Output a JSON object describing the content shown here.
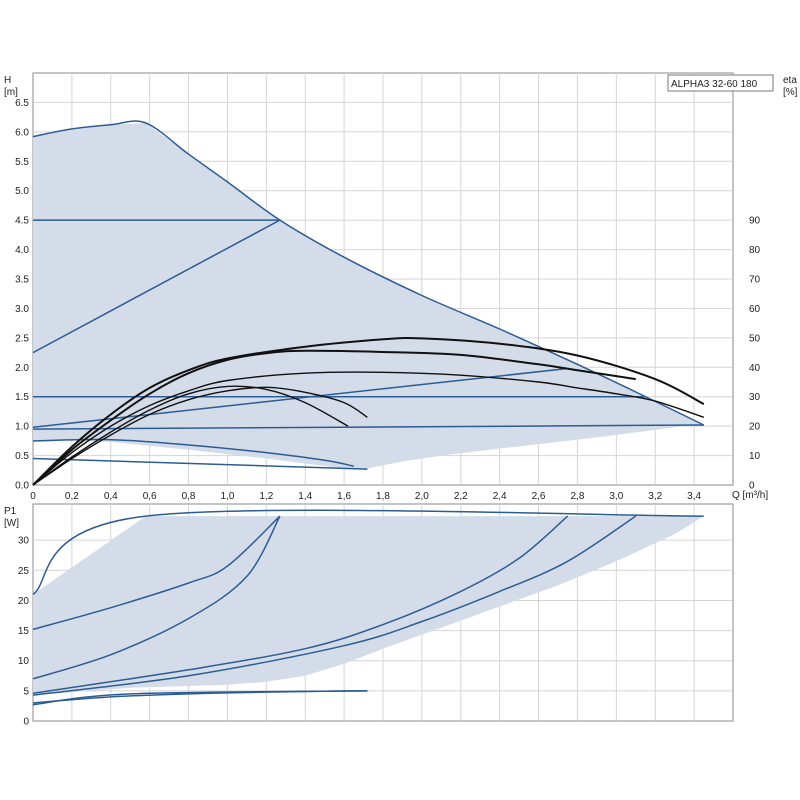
{
  "chart_data": [
    {
      "type": "line",
      "title": "ALPHA3 32-60 180",
      "ylabel_left": [
        "H",
        "[m]"
      ],
      "ylabel_right": [
        "eta",
        "[%]"
      ],
      "xlabel": "Q [m³/h]",
      "xlim": [
        0,
        3.6
      ],
      "ylim": [
        0,
        7.0
      ],
      "ylim_right": [
        0,
        140
      ],
      "grid": true,
      "x_ticks": [
        "0",
        "0,2",
        "0,4",
        "0,6",
        "0,8",
        "1,0",
        "1,2",
        "1,4",
        "1,6",
        "1,8",
        "2,0",
        "2,2",
        "2,4",
        "2,6",
        "2,8",
        "3,0",
        "3,2",
        "3,4"
      ],
      "y_ticks": [
        "0.0",
        "0.5",
        "1.0",
        "1.5",
        "2.0",
        "2.5",
        "3.0",
        "3.5",
        "4.0",
        "4.5",
        "5.0",
        "5.5",
        "6.0",
        "6.5"
      ],
      "y_right_ticks": [
        "0",
        "10",
        "20",
        "30",
        "40",
        "50",
        "60",
        "70",
        "80",
        "90"
      ],
      "operating_area": [
        [
          0,
          5.92
        ],
        [
          0.2,
          6.05
        ],
        [
          0.4,
          6.12
        ],
        [
          0.58,
          6.15
        ],
        [
          0.8,
          5.62
        ],
        [
          1.0,
          5.15
        ],
        [
          1.27,
          4.5
        ],
        [
          1.6,
          3.87
        ],
        [
          2.0,
          3.22
        ],
        [
          2.4,
          2.65
        ],
        [
          2.8,
          2.05
        ],
        [
          3.1,
          1.58
        ],
        [
          3.45,
          1.02
        ],
        [
          3.3,
          0.98
        ],
        [
          3.0,
          0.85
        ],
        [
          2.7,
          0.73
        ],
        [
          2.4,
          0.62
        ],
        [
          2.1,
          0.5
        ],
        [
          1.9,
          0.4
        ],
        [
          1.72,
          0.28
        ],
        [
          1.55,
          0.3
        ],
        [
          1.2,
          0.45
        ],
        [
          0.8,
          0.6
        ],
        [
          0.4,
          0.73
        ],
        [
          0.2,
          0.76
        ],
        [
          0,
          0.73
        ]
      ],
      "head_series": [
        {
          "points": [
            [
              0,
              5.92
            ],
            [
              0.2,
              6.05
            ],
            [
              0.4,
              6.12
            ],
            [
              0.58,
              6.15
            ],
            [
              0.8,
              5.62
            ],
            [
              1.0,
              5.15
            ],
            [
              1.27,
              4.5
            ],
            [
              1.6,
              3.87
            ],
            [
              2.0,
              3.22
            ],
            [
              2.4,
              2.65
            ],
            [
              2.8,
              2.05
            ],
            [
              3.1,
              1.58
            ],
            [
              3.45,
              1.02
            ]
          ]
        },
        {
          "points": [
            [
              0,
              4.5
            ],
            [
              1.27,
              4.5
            ]
          ]
        },
        {
          "points": [
            [
              0,
              2.25
            ],
            [
              1.27,
              4.5
            ]
          ]
        },
        {
          "points": [
            [
              0,
              1.5
            ],
            [
              3.15,
              1.5
            ]
          ]
        },
        {
          "points": [
            [
              0,
              0.98
            ],
            [
              2.75,
              1.98
            ]
          ]
        },
        {
          "points": [
            [
              0,
              0.95
            ],
            [
              3.45,
              1.02
            ]
          ]
        },
        {
          "points": [
            [
              0,
              0.75
            ],
            [
              0.4,
              0.77
            ],
            [
              0.8,
              0.68
            ],
            [
              1.2,
              0.55
            ],
            [
              1.5,
              0.42
            ],
            [
              1.65,
              0.32
            ]
          ]
        },
        {
          "points": [
            [
              0,
              0.45
            ],
            [
              1.72,
              0.27
            ]
          ]
        }
      ],
      "efficiency_series": [
        {
          "points": [
            [
              0,
              0
            ],
            [
              0.2,
              11
            ],
            [
              0.4,
              20
            ],
            [
              0.6,
              27
            ],
            [
              0.8,
              32
            ],
            [
              1.0,
              35.5
            ],
            [
              1.4,
              38
            ],
            [
              1.8,
              38.3
            ],
            [
              2.2,
              37.3
            ],
            [
              2.6,
              35
            ],
            [
              2.8,
              33
            ],
            [
              3.0,
              31
            ],
            [
              3.2,
              28.5
            ],
            [
              3.45,
              23
            ]
          ]
        },
        {
          "points": [
            [
              0,
              0
            ],
            [
              0.2,
              12
            ],
            [
              0.4,
              22
            ],
            [
              0.6,
              31
            ],
            [
              0.8,
              38
            ],
            [
              1.0,
              42.5
            ],
            [
              1.2,
              44.8
            ],
            [
              1.4,
              45.6
            ],
            [
              1.8,
              45.2
            ],
            [
              2.2,
              44.2
            ],
            [
              2.6,
              41
            ],
            [
              2.8,
              39
            ],
            [
              3.1,
              36
            ]
          ]
        },
        {
          "points": [
            [
              0,
              0
            ],
            [
              0.2,
              13
            ],
            [
              0.4,
              24
            ],
            [
              0.6,
              33
            ],
            [
              0.8,
              39
            ],
            [
              1.0,
              43
            ],
            [
              1.4,
              47
            ],
            [
              1.8,
              49.5
            ],
            [
              2.0,
              49.8
            ],
            [
              2.4,
              48
            ],
            [
              2.8,
              44
            ],
            [
              3.2,
              36
            ],
            [
              3.45,
              27.5
            ]
          ]
        },
        {
          "points": [
            [
              0,
              0
            ],
            [
              0.2,
              9
            ],
            [
              0.4,
              17
            ],
            [
              0.6,
              24
            ],
            [
              0.8,
              29
            ],
            [
              1.0,
              32
            ],
            [
              1.2,
              33.2
            ],
            [
              1.4,
              31.5
            ],
            [
              1.6,
              28
            ],
            [
              1.72,
              23
            ]
          ]
        },
        {
          "points": [
            [
              0,
              0
            ],
            [
              0.2,
              9.5
            ],
            [
              0.4,
              18
            ],
            [
              0.6,
              25.5
            ],
            [
              0.8,
              31
            ],
            [
              1.0,
              33.5
            ],
            [
              1.2,
              32.5
            ],
            [
              1.4,
              28
            ],
            [
              1.62,
              20
            ]
          ]
        }
      ]
    },
    {
      "type": "line",
      "ylabel": [
        "P1",
        "[W]"
      ],
      "xlim": [
        0,
        3.6
      ],
      "ylim": [
        0,
        36
      ],
      "grid": true,
      "y_ticks": [
        "0",
        "5",
        "10",
        "15",
        "20",
        "25",
        "30"
      ],
      "operating_area": [
        [
          0,
          21
        ],
        [
          0.58,
          34
        ],
        [
          3.45,
          34
        ],
        [
          3.3,
          31
        ],
        [
          3.0,
          26.5
        ],
        [
          2.7,
          22.5
        ],
        [
          2.4,
          19
        ],
        [
          2.1,
          15.5
        ],
        [
          1.8,
          12
        ],
        [
          1.6,
          9.5
        ],
        [
          1.4,
          7.5
        ],
        [
          1.2,
          6.5
        ],
        [
          1.0,
          6
        ],
        [
          0.5,
          5.5
        ],
        [
          0,
          4.3
        ]
      ],
      "power_series": [
        {
          "points": [
            [
              0,
              21
            ],
            [
              0.58,
              34
            ],
            [
              3.45,
              34
            ]
          ]
        },
        {
          "points": [
            [
              0,
              15.2
            ],
            [
              0.4,
              18.8
            ],
            [
              0.8,
              22.9
            ],
            [
              1.0,
              25.7
            ],
            [
              1.27,
              34
            ]
          ]
        },
        {
          "points": [
            [
              0,
              7
            ],
            [
              0.4,
              11
            ],
            [
              0.8,
              17
            ],
            [
              1.1,
              24
            ],
            [
              1.27,
              34
            ]
          ]
        },
        {
          "points": [
            [
              0,
              4.3
            ],
            [
              0.8,
              7.5
            ],
            [
              1.6,
              12.5
            ],
            [
              2.0,
              16.5
            ],
            [
              2.4,
              21.5
            ],
            [
              2.75,
              26.5
            ],
            [
              3.1,
              34
            ]
          ]
        },
        {
          "points": [
            [
              0,
              4.6
            ],
            [
              0.8,
              8.5
            ],
            [
              1.4,
              12
            ],
            [
              1.8,
              16
            ],
            [
              2.2,
              21.5
            ],
            [
              2.5,
              27
            ],
            [
              2.75,
              34
            ]
          ]
        },
        {
          "points": [
            [
              0,
              3
            ],
            [
              0.4,
              4
            ],
            [
              0.8,
              4.5
            ],
            [
              1.2,
              4.8
            ],
            [
              1.62,
              5
            ],
            [
              1.72,
              5
            ]
          ]
        },
        {
          "points": [
            [
              0,
              2.7
            ],
            [
              0.5,
              4.5
            ],
            [
              1.72,
              5
            ]
          ]
        }
      ]
    }
  ]
}
